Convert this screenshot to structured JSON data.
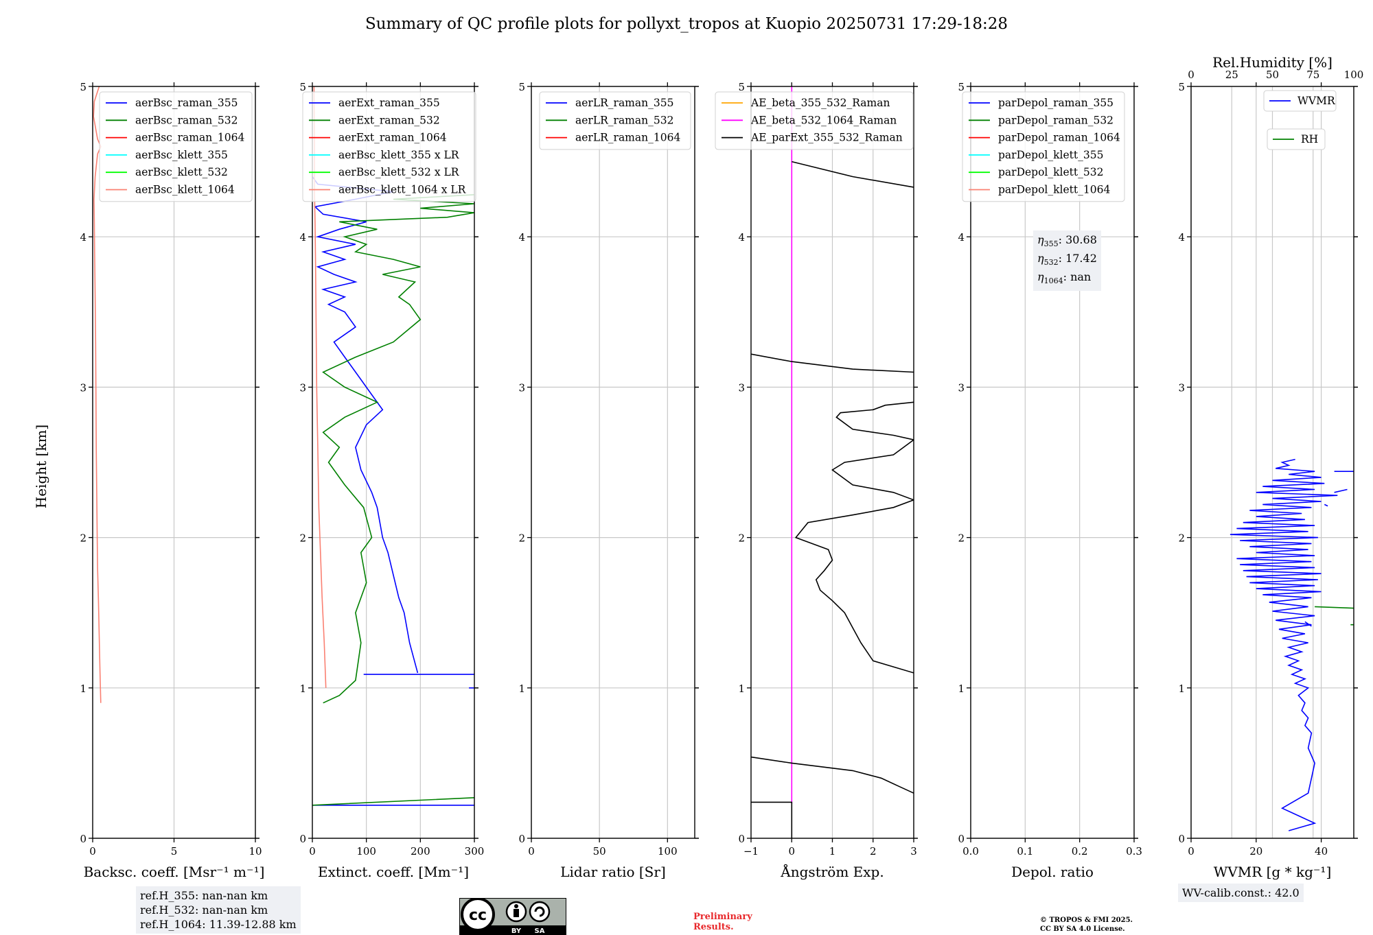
{
  "title": "Summary of QC profile plots for pollyxt_tropos at Kuopio 20250731 17:29-18:28",
  "y_axis_label": "Height [km]",
  "ref_heights": [
    "ref.H_355: nan-nan km",
    "ref.H_532: nan-nan km",
    "ref.H_1064: 11.39-12.88 km"
  ],
  "eta_box": {
    "lines": [
      {
        "symbol": "η",
        "sub": "355",
        "value": ": 30.68"
      },
      {
        "symbol": "η",
        "sub": "532",
        "value": ": 17.42"
      },
      {
        "symbol": "η",
        "sub": "1064",
        "value": ": nan"
      }
    ]
  },
  "wv_calib": "WV-calib.const.: 42.0",
  "license_logo": {
    "cc": "cc",
    "by": "BY",
    "sa": "SA"
  },
  "preliminary": [
    "Preliminary",
    "Results."
  ],
  "copyright": [
    "© TROPOS & FMI 2025.",
    "CC BY SA 4.0 License."
  ],
  "colors": {
    "blue": "#0000ff",
    "green": "#008000",
    "red": "#ff0000",
    "cyan": "#00ffff",
    "lime": "#00ff00",
    "salmon": "#fa8072",
    "orange": "#ffa500",
    "magenta": "#ff00ff",
    "black": "#000000"
  },
  "chart_data": [
    {
      "type": "line",
      "xlabel": "Backsc. coeff. [Msr⁻¹ m⁻¹]",
      "ylabel": "Height [km]",
      "xlim": [
        0,
        10
      ],
      "ylim": [
        0,
        5
      ],
      "xticks": [
        0,
        5,
        10
      ],
      "xtick_labels": [
        "0",
        "5",
        "10"
      ],
      "yticks": [
        0,
        1,
        2,
        3,
        4,
        5
      ],
      "grid": true,
      "legend_loc": "upper right",
      "series": [
        {
          "name": "aerBsc_raman_355",
          "color": "#0000ff",
          "x": [],
          "y": []
        },
        {
          "name": "aerBsc_raman_532",
          "color": "#008000",
          "x": [],
          "y": []
        },
        {
          "name": "aerBsc_raman_1064",
          "color": "#ff0000",
          "x": [],
          "y": []
        },
        {
          "name": "aerBsc_klett_355",
          "color": "#00ffff",
          "x": [],
          "y": []
        },
        {
          "name": "aerBsc_klett_532",
          "color": "#00ff00",
          "x": [],
          "y": []
        },
        {
          "name": "aerBsc_klett_1064",
          "color": "#fa8072",
          "x": [
            0.5,
            0.45,
            0.4,
            0.35,
            0.3,
            0.28,
            0.25,
            0.22,
            0.2,
            0.18,
            0.15,
            0.12,
            0.1,
            0.08,
            0.15,
            0.3,
            0.5,
            0.3,
            0.05,
            0.1,
            0.4
          ],
          "y": [
            0.9,
            1.1,
            1.35,
            1.6,
            1.8,
            2.0,
            2.3,
            2.6,
            3.0,
            3.3,
            3.6,
            3.9,
            4.1,
            4.25,
            4.4,
            4.55,
            4.6,
            4.65,
            4.8,
            4.9,
            5.0
          ]
        }
      ]
    },
    {
      "type": "line",
      "xlabel": "Extinct. coeff. [Mm⁻¹]",
      "xlim": [
        0,
        300
      ],
      "ylim": [
        0,
        5
      ],
      "xticks": [
        0,
        100,
        200,
        300
      ],
      "xtick_labels": [
        "0",
        "100",
        "200",
        "300"
      ],
      "yticks": [
        0,
        1,
        2,
        3,
        4,
        5
      ],
      "grid": true,
      "legend_loc": "upper right",
      "series": [
        {
          "name": "aerExt_raman_355",
          "color": "#0000ff",
          "x": [
            0,
            300,
            null,
            300,
            290,
            null,
            95,
            300,
            null,
            195,
            180,
            170,
            160,
            150,
            140,
            130,
            120,
            110,
            90,
            80,
            100,
            130,
            110,
            90,
            60,
            40,
            80,
            60,
            30,
            60,
            20,
            80,
            40,
            10,
            60,
            20,
            80,
            10,
            50,
            100,
            20,
            5,
            80,
            150,
            10,
            0
          ],
          "y": [
            0.22,
            0.22,
            null,
            1.0,
            1.0,
            null,
            1.09,
            1.09,
            null,
            1.1,
            1.3,
            1.5,
            1.6,
            1.75,
            1.9,
            2.0,
            2.2,
            2.3,
            2.45,
            2.6,
            2.75,
            2.85,
            2.95,
            3.05,
            3.2,
            3.3,
            3.4,
            3.5,
            3.55,
            3.6,
            3.65,
            3.7,
            3.75,
            3.8,
            3.85,
            3.9,
            3.95,
            4.0,
            4.05,
            4.1,
            4.15,
            4.2,
            4.25,
            4.3,
            4.35,
            4.4
          ]
        },
        {
          "name": "aerExt_raman_532",
          "color": "#008000",
          "x": [
            0,
            300,
            null,
            20,
            50,
            80,
            90,
            80,
            100,
            90,
            110,
            95,
            60,
            30,
            50,
            20,
            60,
            120,
            60,
            20,
            80,
            150,
            200,
            180,
            160,
            190,
            130,
            200,
            150,
            80,
            100,
            60,
            120,
            50,
            250,
            300,
            200,
            300,
            150,
            300
          ],
          "y": [
            0.22,
            0.27,
            null,
            0.9,
            0.95,
            1.05,
            1.3,
            1.5,
            1.7,
            1.9,
            2.0,
            2.2,
            2.35,
            2.5,
            2.6,
            2.7,
            2.8,
            2.9,
            3.0,
            3.1,
            3.2,
            3.3,
            3.45,
            3.55,
            3.6,
            3.7,
            3.75,
            3.8,
            3.85,
            3.9,
            3.95,
            4.0,
            4.05,
            4.1,
            4.13,
            4.16,
            4.19,
            4.22,
            4.25,
            4.28
          ]
        },
        {
          "name": "aerExt_raman_1064",
          "color": "#ff0000",
          "x": [],
          "y": []
        },
        {
          "name": "aerBsc_klett_355 x LR",
          "color": "#00ffff",
          "x": [],
          "y": []
        },
        {
          "name": "aerBsc_klett_532 x LR",
          "color": "#00ff00",
          "x": [],
          "y": []
        },
        {
          "name": "aerBsc_klett_1064 x LR",
          "color": "#fa8072",
          "x": [
            25,
            22,
            18,
            15,
            12,
            10,
            8,
            7,
            6,
            5,
            4,
            4,
            3
          ],
          "y": [
            1.0,
            1.3,
            1.6,
            1.9,
            2.2,
            2.6,
            3.0,
            3.4,
            3.8,
            4.1,
            4.3,
            4.6,
            5.0
          ]
        }
      ]
    },
    {
      "type": "line",
      "xlabel": "Lidar ratio [Sr]",
      "xlim": [
        0,
        120
      ],
      "ylim": [
        0,
        5
      ],
      "xticks": [
        0,
        50,
        100
      ],
      "xtick_labels": [
        "0",
        "50",
        "100"
      ],
      "yticks": [
        0,
        1,
        2,
        3,
        4,
        5
      ],
      "grid": true,
      "legend_loc": "upper right",
      "series": [
        {
          "name": "aerLR_raman_355",
          "color": "#0000ff",
          "x": [],
          "y": []
        },
        {
          "name": "aerLR_raman_532",
          "color": "#008000",
          "x": [],
          "y": []
        },
        {
          "name": "aerLR_raman_1064",
          "color": "#ff0000",
          "x": [],
          "y": []
        }
      ]
    },
    {
      "type": "line",
      "xlabel": "Ångström Exp.",
      "xlim": [
        -1,
        3
      ],
      "ylim": [
        0,
        5
      ],
      "xticks": [
        -1,
        0,
        1,
        2,
        3
      ],
      "xtick_labels": [
        "−1",
        "0",
        "1",
        "2",
        "3"
      ],
      "yticks": [
        0,
        1,
        2,
        3,
        4,
        5
      ],
      "grid": true,
      "legend_loc": "upper center",
      "series": [
        {
          "name": "AE_beta_355_532_Raman",
          "color": "#ffa500",
          "x": [],
          "y": []
        },
        {
          "name": "AE_beta_532_1064_Raman",
          "color": "#ff00ff",
          "x": [
            0,
            0
          ],
          "y": [
            0.23,
            5.0
          ]
        },
        {
          "name": "AE_parExt_355_532_Raman",
          "color": "#000000",
          "x": [
            -1,
            0,
            0,
            null,
            3,
            2.6,
            2.2,
            1.5,
            0,
            -1,
            null,
            3,
            2.0,
            1.7,
            1.5,
            1.3,
            1.0,
            0.7,
            0.6,
            0.8,
            1.0,
            0.9,
            0.5,
            0.1,
            0.4,
            1.5,
            2.5,
            3.0,
            2.5,
            1.5,
            1.0,
            1.3,
            2.5,
            3.0,
            2.5,
            1.5,
            1.1,
            1.2,
            2.0,
            2.3,
            3.0,
            null,
            -1,
            0,
            1.5,
            3.0,
            null,
            0,
            1.5,
            3.0
          ],
          "y": [
            0.24,
            0.24,
            0.0,
            null,
            0.3,
            0.35,
            0.4,
            0.45,
            0.5,
            0.54,
            null,
            1.1,
            1.18,
            1.3,
            1.4,
            1.5,
            1.58,
            1.65,
            1.72,
            1.78,
            1.85,
            1.92,
            1.96,
            2.0,
            2.1,
            2.15,
            2.2,
            2.25,
            2.3,
            2.35,
            2.45,
            2.5,
            2.55,
            2.65,
            2.68,
            2.72,
            2.8,
            2.83,
            2.85,
            2.88,
            2.9,
            null,
            3.22,
            3.17,
            3.12,
            3.1,
            null,
            4.5,
            4.4,
            4.33
          ]
        }
      ]
    },
    {
      "type": "line",
      "xlabel": "Depol. ratio",
      "xlim": [
        0.0,
        0.3
      ],
      "ylim": [
        0,
        5
      ],
      "xticks": [
        0.0,
        0.1,
        0.2,
        0.3
      ],
      "xtick_labels": [
        "0.0",
        "0.1",
        "0.2",
        "0.3"
      ],
      "yticks": [
        0,
        1,
        2,
        3,
        4,
        5
      ],
      "grid": true,
      "legend_loc": "upper right",
      "series": [
        {
          "name": "parDepol_raman_355",
          "color": "#0000ff",
          "x": [],
          "y": []
        },
        {
          "name": "parDepol_raman_532",
          "color": "#008000",
          "x": [],
          "y": []
        },
        {
          "name": "parDepol_raman_1064",
          "color": "#ff0000",
          "x": [],
          "y": []
        },
        {
          "name": "parDepol_klett_355",
          "color": "#00ffff",
          "x": [],
          "y": []
        },
        {
          "name": "parDepol_klett_532",
          "color": "#00ff00",
          "x": [],
          "y": []
        },
        {
          "name": "parDepol_klett_1064",
          "color": "#fa8072",
          "x": [],
          "y": []
        }
      ]
    },
    {
      "type": "line",
      "xlabel": "WVMR [g * kg⁻¹]",
      "top_xlabel": "Rel.Humidity [%]",
      "xlim": [
        0,
        50
      ],
      "top_xlim": [
        0,
        100
      ],
      "ylim": [
        0,
        5
      ],
      "xticks": [
        0,
        20,
        40
      ],
      "xtick_labels": [
        "0",
        "20",
        "40"
      ],
      "top_xticks": [
        0,
        25,
        50,
        75,
        100
      ],
      "top_xtick_labels": [
        "0",
        "25",
        "50",
        "75",
        "100"
      ],
      "yticks": [
        0,
        1,
        2,
        3,
        4,
        5
      ],
      "grid": true,
      "series": [
        {
          "name": "WVMR",
          "color": "#0000ff",
          "axis": "bottom",
          "x": [
            30,
            38,
            33,
            28,
            36,
            37,
            38,
            36,
            37,
            35,
            36,
            34,
            35,
            33,
            36,
            32,
            35,
            31,
            34,
            30,
            33,
            29,
            34,
            30,
            36,
            28,
            35,
            27,
            37,
            26,
            38,
            25,
            36,
            24,
            37,
            22,
            40,
            20,
            38,
            18,
            39,
            17,
            40,
            16,
            38,
            15,
            37,
            14,
            38,
            20,
            36,
            18,
            37,
            15,
            39,
            12,
            36,
            14,
            38,
            16,
            35,
            20,
            34,
            18,
            37,
            22,
            40,
            25,
            45,
            20,
            38,
            22,
            41,
            25,
            40,
            30,
            38,
            26,
            30,
            28,
            32,
            null,
            44,
            48,
            null,
            50,
            44,
            null,
            37,
            35,
            null,
            42,
            41
          ],
          "y": [
            0.05,
            0.1,
            0.15,
            0.2,
            0.3,
            0.4,
            0.5,
            0.6,
            0.7,
            0.75,
            0.8,
            0.85,
            0.9,
            0.95,
            1.0,
            1.03,
            1.06,
            1.09,
            1.12,
            1.15,
            1.18,
            1.21,
            1.24,
            1.27,
            1.3,
            1.33,
            1.36,
            1.39,
            1.42,
            1.45,
            1.48,
            1.51,
            1.54,
            1.57,
            1.6,
            1.62,
            1.64,
            1.66,
            1.68,
            1.7,
            1.72,
            1.74,
            1.76,
            1.78,
            1.8,
            1.82,
            1.84,
            1.86,
            1.88,
            1.9,
            1.92,
            1.94,
            1.96,
            1.98,
            2.0,
            2.02,
            2.04,
            2.06,
            2.08,
            2.1,
            2.12,
            2.14,
            2.16,
            2.18,
            2.2,
            2.22,
            2.24,
            2.26,
            2.28,
            2.3,
            2.32,
            2.34,
            2.36,
            2.38,
            2.4,
            2.42,
            2.44,
            2.46,
            2.48,
            2.5,
            2.52,
            null,
            2.3,
            2.32,
            null,
            2.44,
            2.44,
            null,
            1.41,
            1.44,
            null,
            2.21,
            2.22
          ]
        },
        {
          "name": "RH",
          "color": "#008000",
          "axis": "top",
          "x": [
            76,
            100,
            null,
            98,
            100
          ],
          "y": [
            1.54,
            1.53,
            null,
            1.42,
            1.42
          ]
        }
      ]
    }
  ]
}
